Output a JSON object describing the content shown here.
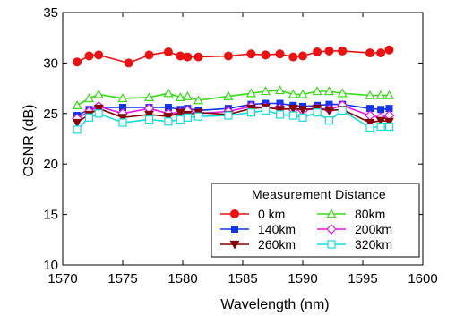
{
  "chart_data": {
    "type": "line",
    "title": "",
    "xlabel": "Wavelength (nm)",
    "ylabel": "OSNR (dB)",
    "xlim": [
      1570,
      1600
    ],
    "ylim": [
      10,
      35
    ],
    "xticks": [
      1570,
      1575,
      1580,
      1585,
      1590,
      1595,
      1600
    ],
    "yticks": [
      10,
      15,
      20,
      25,
      30,
      35
    ],
    "grid": false,
    "legend": {
      "title": "Measurement Distance",
      "placement": "bottom-right",
      "columns": 2
    },
    "series": [
      {
        "name": "0 km",
        "color": "#ee1111",
        "marker": "circle-filled",
        "x": [
          1571.2,
          1572.2,
          1573.0,
          1575.5,
          1577.2,
          1578.8,
          1579.8,
          1580.4,
          1581.3,
          1583.8,
          1585.7,
          1586.9,
          1588.1,
          1589.2,
          1590.0,
          1591.2,
          1592.2,
          1593.3,
          1595.6,
          1596.5,
          1597.2
        ],
        "y": [
          30.1,
          30.7,
          30.8,
          30.0,
          30.8,
          31.1,
          30.7,
          30.6,
          30.6,
          30.7,
          30.9,
          30.8,
          30.9,
          30.6,
          30.7,
          31.1,
          31.2,
          31.2,
          31.0,
          31.0,
          31.3
        ]
      },
      {
        "name": "80km",
        "color": "#33dd11",
        "marker": "triangle-open",
        "x": [
          1571.2,
          1572.2,
          1573.0,
          1575.0,
          1577.2,
          1578.8,
          1579.8,
          1580.4,
          1581.3,
          1583.8,
          1585.7,
          1586.9,
          1588.1,
          1589.2,
          1590.0,
          1591.2,
          1592.2,
          1593.3,
          1595.6,
          1596.5,
          1597.2
        ],
        "y": [
          25.8,
          26.5,
          26.9,
          26.5,
          26.6,
          27.0,
          26.6,
          26.7,
          26.3,
          26.7,
          27.0,
          27.2,
          27.3,
          26.9,
          26.9,
          27.2,
          27.2,
          27.0,
          26.8,
          26.8,
          26.8
        ]
      },
      {
        "name": "140km",
        "color": "#1133ee",
        "marker": "square-filled",
        "x": [
          1571.2,
          1572.2,
          1573.0,
          1575.0,
          1577.2,
          1578.8,
          1579.8,
          1580.4,
          1581.3,
          1583.8,
          1585.7,
          1586.9,
          1588.1,
          1589.2,
          1590.0,
          1591.2,
          1592.2,
          1593.3,
          1595.6,
          1596.5,
          1597.2
        ],
        "y": [
          24.8,
          25.4,
          25.6,
          25.6,
          25.6,
          25.6,
          25.4,
          25.5,
          25.3,
          25.5,
          25.9,
          26.0,
          26.0,
          25.8,
          25.7,
          25.8,
          25.9,
          25.9,
          25.5,
          25.4,
          25.5
        ]
      },
      {
        "name": "200km",
        "color": "#ee11ee",
        "marker": "diamond-open",
        "x": [
          1571.2,
          1572.2,
          1573.0,
          1575.0,
          1577.2,
          1578.8,
          1579.8,
          1580.4,
          1581.3,
          1583.8,
          1585.7,
          1586.9,
          1588.1,
          1589.2,
          1590.0,
          1591.2,
          1592.2,
          1593.3,
          1595.6,
          1596.5,
          1597.2
        ],
        "y": [
          24.5,
          25.2,
          25.7,
          25.0,
          25.5,
          25.0,
          25.1,
          25.3,
          25.0,
          25.2,
          25.7,
          25.6,
          25.5,
          25.4,
          25.3,
          25.5,
          25.4,
          25.8,
          24.8,
          24.6,
          24.8
        ]
      },
      {
        "name": "260km",
        "color": "#880000",
        "marker": "triangle-down-filled",
        "x": [
          1571.2,
          1572.2,
          1573.0,
          1575.0,
          1577.2,
          1578.8,
          1579.8,
          1580.4,
          1581.3,
          1583.8,
          1585.7,
          1586.9,
          1588.1,
          1589.2,
          1590.0,
          1591.2,
          1592.2,
          1593.3,
          1595.6,
          1596.5,
          1597.2
        ],
        "y": [
          24.1,
          24.9,
          25.5,
          24.6,
          24.9,
          24.7,
          25.1,
          24.9,
          25.1,
          24.9,
          25.5,
          25.6,
          25.4,
          25.5,
          25.4,
          25.5,
          25.3,
          25.4,
          24.1,
          24.3,
          24.2
        ]
      },
      {
        "name": "320km",
        "color": "#11dddd",
        "marker": "square-open",
        "x": [
          1571.2,
          1572.2,
          1573.0,
          1575.0,
          1577.2,
          1578.8,
          1579.8,
          1580.4,
          1581.3,
          1583.8,
          1585.7,
          1586.9,
          1588.1,
          1589.2,
          1590.0,
          1591.2,
          1592.2,
          1593.3,
          1595.6,
          1596.5,
          1597.2
        ],
        "y": [
          23.4,
          24.6,
          25.0,
          24.1,
          24.4,
          24.2,
          24.4,
          24.6,
          24.7,
          24.8,
          25.1,
          25.3,
          24.9,
          24.8,
          24.6,
          25.1,
          24.3,
          25.3,
          23.6,
          23.7,
          23.7
        ]
      }
    ]
  }
}
